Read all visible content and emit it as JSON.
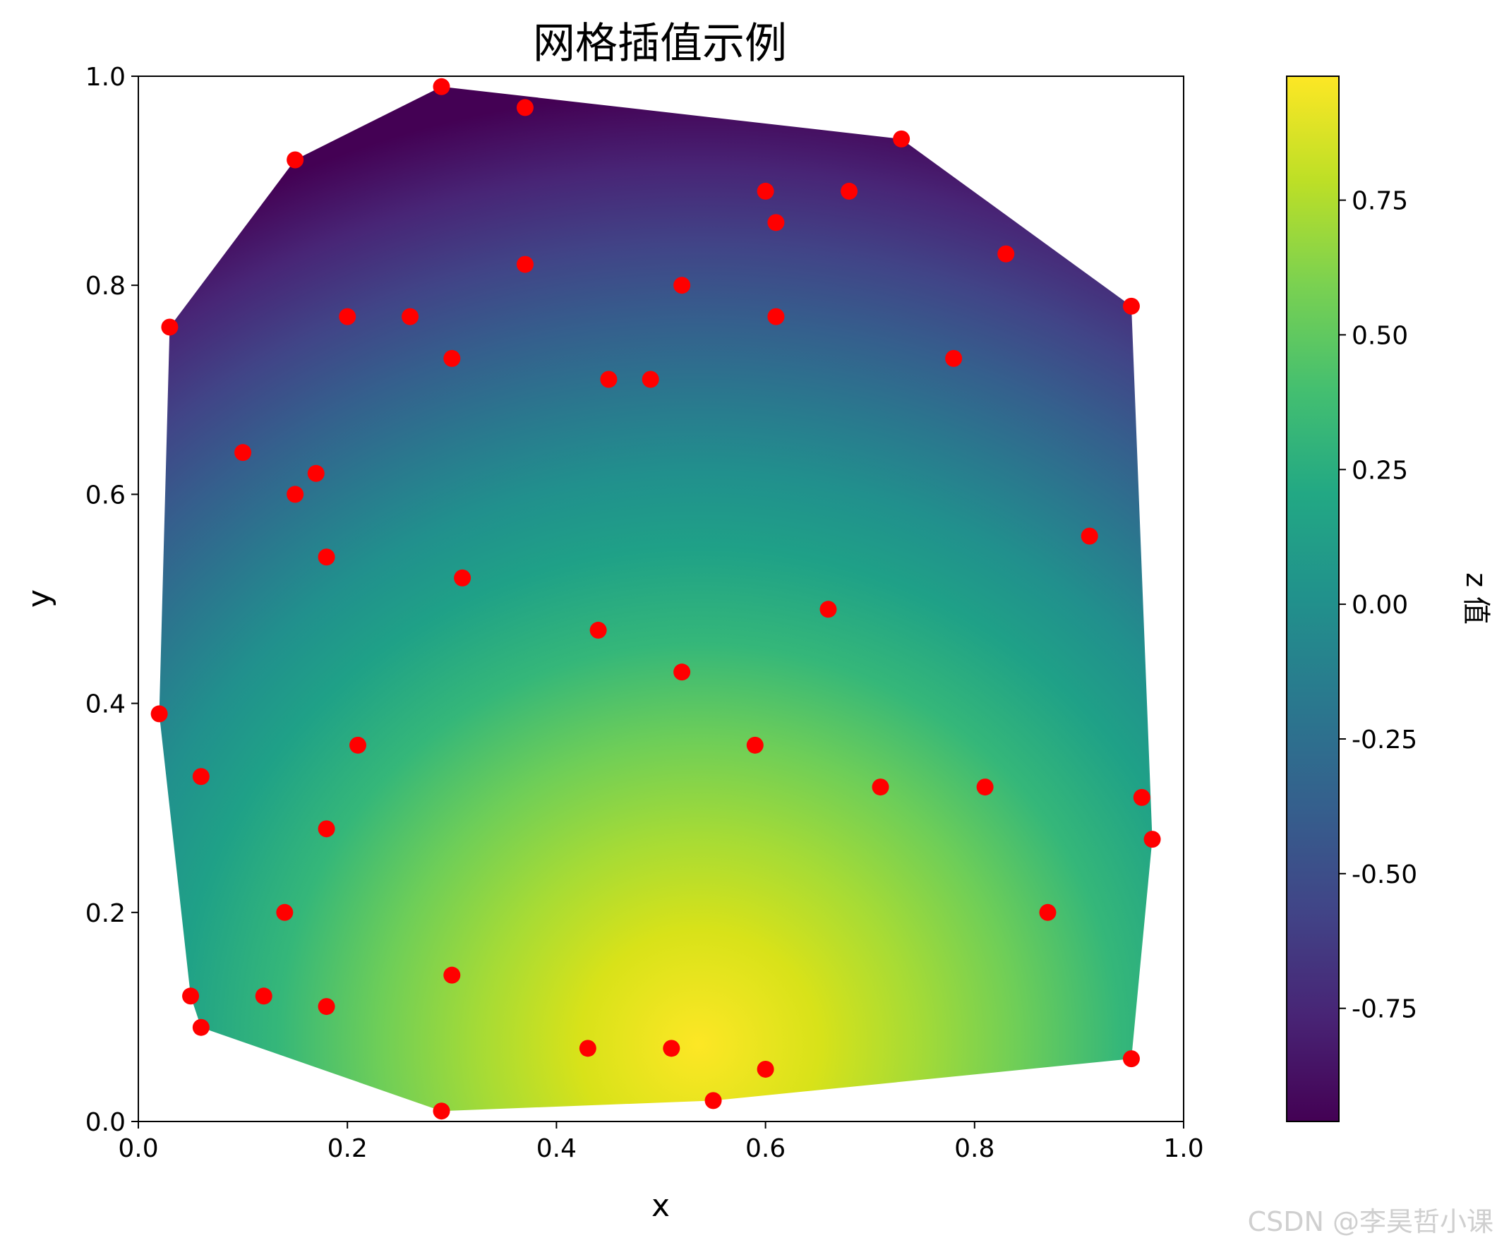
{
  "chart_data": {
    "type": "scatter",
    "title": "网格插值示例",
    "xlabel": "x",
    "ylabel": "y",
    "xlim": [
      0.0,
      1.0
    ],
    "ylim": [
      0.0,
      1.0
    ],
    "xticks": [
      "0.0",
      "0.2",
      "0.4",
      "0.6",
      "0.8",
      "1.0"
    ],
    "yticks": [
      "0.0",
      "0.2",
      "0.4",
      "0.6",
      "0.8",
      "1.0"
    ],
    "grid": false,
    "background": "interpolated heatmap of z over the convex hull of the sample points (viridis colormap)",
    "colormap": "viridis",
    "colorbar": {
      "label": "z 值",
      "range": [
        -0.96,
        0.98
      ],
      "ticks": [
        "-0.75",
        "-0.50",
        "-0.25",
        "0.00",
        "0.25",
        "0.50",
        "0.75"
      ],
      "placement": "right"
    },
    "marker_color": "#ff0000",
    "points": [
      {
        "x": 0.29,
        "y": 0.99
      },
      {
        "x": 0.37,
        "y": 0.97
      },
      {
        "x": 0.15,
        "y": 0.92
      },
      {
        "x": 0.73,
        "y": 0.94
      },
      {
        "x": 0.6,
        "y": 0.89
      },
      {
        "x": 0.68,
        "y": 0.89
      },
      {
        "x": 0.61,
        "y": 0.86
      },
      {
        "x": 0.83,
        "y": 0.83
      },
      {
        "x": 0.37,
        "y": 0.82
      },
      {
        "x": 0.52,
        "y": 0.8
      },
      {
        "x": 0.95,
        "y": 0.78
      },
      {
        "x": 0.03,
        "y": 0.76
      },
      {
        "x": 0.2,
        "y": 0.77
      },
      {
        "x": 0.26,
        "y": 0.77
      },
      {
        "x": 0.61,
        "y": 0.77
      },
      {
        "x": 0.3,
        "y": 0.73
      },
      {
        "x": 0.78,
        "y": 0.73
      },
      {
        "x": 0.45,
        "y": 0.71
      },
      {
        "x": 0.49,
        "y": 0.71
      },
      {
        "x": 0.1,
        "y": 0.64
      },
      {
        "x": 0.17,
        "y": 0.62
      },
      {
        "x": 0.15,
        "y": 0.6
      },
      {
        "x": 0.91,
        "y": 0.56
      },
      {
        "x": 0.18,
        "y": 0.54
      },
      {
        "x": 0.31,
        "y": 0.52
      },
      {
        "x": 0.66,
        "y": 0.49
      },
      {
        "x": 0.44,
        "y": 0.47
      },
      {
        "x": 0.52,
        "y": 0.43
      },
      {
        "x": 0.02,
        "y": 0.39
      },
      {
        "x": 0.21,
        "y": 0.36
      },
      {
        "x": 0.59,
        "y": 0.36
      },
      {
        "x": 0.06,
        "y": 0.33
      },
      {
        "x": 0.71,
        "y": 0.32
      },
      {
        "x": 0.81,
        "y": 0.32
      },
      {
        "x": 0.96,
        "y": 0.31
      },
      {
        "x": 0.18,
        "y": 0.28
      },
      {
        "x": 0.97,
        "y": 0.27
      },
      {
        "x": 0.14,
        "y": 0.2
      },
      {
        "x": 0.87,
        "y": 0.2
      },
      {
        "x": 0.3,
        "y": 0.14
      },
      {
        "x": 0.05,
        "y": 0.12
      },
      {
        "x": 0.12,
        "y": 0.12
      },
      {
        "x": 0.18,
        "y": 0.11
      },
      {
        "x": 0.06,
        "y": 0.09
      },
      {
        "x": 0.43,
        "y": 0.07
      },
      {
        "x": 0.51,
        "y": 0.07
      },
      {
        "x": 0.95,
        "y": 0.06
      },
      {
        "x": 0.6,
        "y": 0.05
      },
      {
        "x": 0.55,
        "y": 0.02
      },
      {
        "x": 0.29,
        "y": 0.01
      }
    ]
  },
  "watermark": "CSDN @李昊哲小课"
}
